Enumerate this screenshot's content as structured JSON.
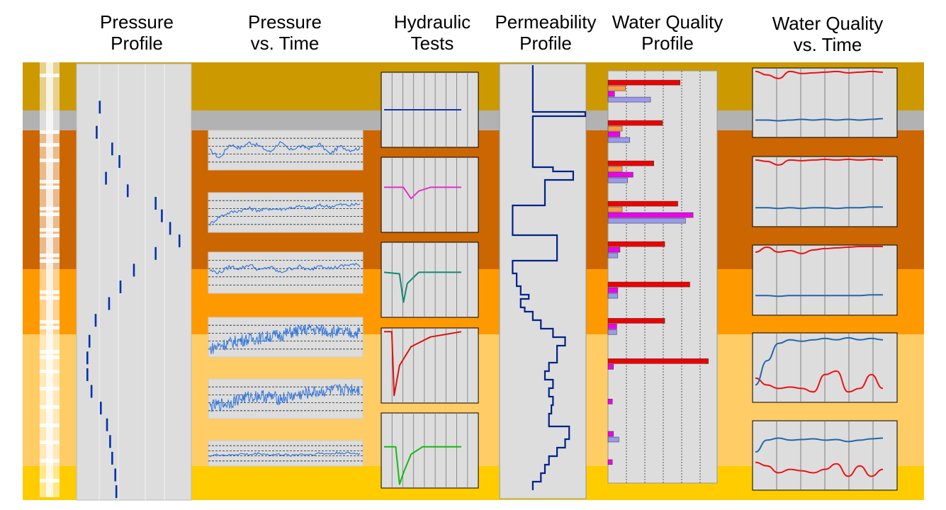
{
  "headers": [
    {
      "line1": "Pressure",
      "line2": "Profile"
    },
    {
      "line1": "Pressure",
      "line2": "vs. Time"
    },
    {
      "line1": "Hydraulic",
      "line2": "Tests"
    },
    {
      "line1": "Permeability",
      "line2": "Profile"
    },
    {
      "line1": "Water Quality",
      "line2": "Profile"
    },
    {
      "line1": "Water Quality",
      "line2": "vs. Time"
    }
  ],
  "colors": {
    "layer_1": "#CC9900",
    "layer_2": "#B2B2B2",
    "layer_3": "#CC6600",
    "layer_4": "#FF9900",
    "layer_5": "#FFCC66",
    "layer_6": "#FFCC00",
    "panel_bg": "#DDDDDD",
    "pressure_marks": "#0033AA",
    "pressure_time_line": "#3377DD",
    "test_flat": "#1133AA",
    "test_magenta": "#DD33CC",
    "test_teal": "#118877",
    "test_red": "#DD1111",
    "test_green": "#11BB11",
    "permeability_line": "#002288",
    "wq_red": "#EE0000",
    "wq_orange": "#FF9944",
    "wq_magenta": "#EE00EE",
    "wq_lavender": "#9999EE",
    "wq_time_red": "#EE1111",
    "wq_time_blue": "#2266AA"
  },
  "chart_data": [
    {
      "type": "line",
      "title": "Pressure Profile",
      "description_of_marks": "short vertical dashes, one per depth interval; relative pressure on a 0-1 scale",
      "depth": [
        0.07,
        0.13,
        0.17,
        0.2,
        0.24,
        0.27,
        0.3,
        0.33,
        0.36,
        0.39,
        0.42,
        0.46,
        0.5,
        0.54,
        0.58,
        0.63,
        0.67,
        0.71,
        0.75,
        0.79,
        0.83,
        0.87,
        0.91,
        0.95,
        0.99
      ],
      "pressure": [
        0.17,
        0.14,
        0.29,
        0.36,
        0.23,
        0.44,
        0.71,
        0.77,
        0.85,
        0.94,
        0.71,
        0.5,
        0.37,
        0.26,
        0.13,
        0.07,
        0.05,
        0.05,
        0.09,
        0.18,
        0.24,
        0.27,
        0.29,
        0.32,
        0.33
      ]
    },
    {
      "type": "line",
      "title": "Pressure vs. Time",
      "series": [
        {
          "values": [
            0.5,
            0.3,
            0.65,
            0.55,
            0.7,
            0.6,
            0.45,
            0.7,
            0.5,
            0.6,
            0.55,
            0.65,
            0.4,
            0.6,
            0.5,
            0.55
          ]
        },
        {
          "values": [
            0.2,
            0.4,
            0.5,
            0.55,
            0.6,
            0.55,
            0.6,
            0.58,
            0.62,
            0.65,
            0.6,
            0.68,
            0.65,
            0.7,
            0.68,
            0.72
          ]
        },
        {
          "values": [
            0.55,
            0.5,
            0.65,
            0.6,
            0.7,
            0.55,
            0.65,
            0.5,
            0.6,
            0.65,
            0.55,
            0.7,
            0.6,
            0.65,
            0.7,
            0.68
          ]
        },
        {
          "values": [
            0.2,
            0.3,
            0.35,
            0.42,
            0.45,
            0.48,
            0.52,
            0.55,
            0.62,
            0.66,
            0.7,
            0.68,
            0.65,
            0.62,
            0.6,
            0.62
          ]
        },
        {
          "values": [
            0.3,
            0.35,
            0.4,
            0.5,
            0.55,
            0.58,
            0.55,
            0.5,
            0.55,
            0.6,
            0.65,
            0.68,
            0.7,
            0.72,
            0.75,
            0.74
          ]
        },
        {
          "values": [
            0.4,
            0.45,
            0.42,
            0.48,
            0.45,
            0.5,
            0.44,
            0.46,
            0.42,
            0.47,
            0.45,
            0.5,
            0.48,
            0.52,
            0.5,
            0.48
          ]
        }
      ]
    },
    {
      "type": "line",
      "title": "Hydraulic Tests",
      "series": [
        {
          "x": [
            0,
            1
          ],
          "y": [
            0.5,
            0.5
          ]
        },
        {
          "x": [
            0,
            0.25,
            0.35,
            0.45,
            0.6,
            1
          ],
          "y": [
            0.6,
            0.6,
            0.45,
            0.55,
            0.6,
            0.6
          ]
        },
        {
          "x": [
            0,
            0.2,
            0.25,
            0.3,
            0.45,
            1
          ],
          "y": [
            0.6,
            0.58,
            0.2,
            0.45,
            0.6,
            0.6
          ]
        },
        {
          "x": [
            0,
            0.1,
            0.13,
            0.2,
            0.35,
            0.6,
            1
          ],
          "y": [
            0.95,
            0.95,
            0.1,
            0.5,
            0.75,
            0.88,
            0.95
          ]
        },
        {
          "x": [
            0,
            0.15,
            0.2,
            0.25,
            0.35,
            0.5,
            1
          ],
          "y": [
            0.55,
            0.55,
            0.05,
            0.2,
            0.45,
            0.55,
            0.55
          ]
        }
      ]
    },
    {
      "type": "line",
      "title": "Permeability Profile",
      "description_of_marks": "step log of relative permeability (0-1) against depth (0-1)",
      "depth": [
        0,
        0.1,
        0.11,
        0.12,
        0.23,
        0.24,
        0.25,
        0.27,
        0.28,
        0.33,
        0.4,
        0.46,
        0.49,
        0.52,
        0.54,
        0.55,
        0.57,
        0.58,
        0.6,
        0.62,
        0.64,
        0.66,
        0.7,
        0.72,
        0.74,
        0.76,
        0.78,
        0.8,
        0.82,
        0.85,
        0.88,
        0.9,
        0.92,
        0.94,
        0.96,
        0.98,
        1.0
      ],
      "permeability": [
        0.35,
        0.35,
        1.0,
        0.35,
        0.35,
        0.6,
        0.85,
        0.5,
        0.5,
        0.1,
        0.65,
        0.1,
        0.15,
        0.2,
        0.3,
        0.2,
        0.25,
        0.35,
        0.45,
        0.6,
        0.75,
        0.65,
        0.55,
        0.5,
        0.6,
        0.55,
        0.6,
        0.58,
        0.55,
        0.8,
        0.75,
        0.65,
        0.55,
        0.5,
        0.45,
        0.35,
        0.35
      ]
    },
    {
      "type": "bar",
      "title": "Water Quality Profile",
      "description_of_marks": "horizontal bars grouped by depth; relative values 0-1",
      "groups": [
        {
          "depth": 0.03,
          "red": 0.66,
          "orange": 0.16,
          "magenta": 0.06,
          "lavender": 0.39
        },
        {
          "depth": 0.13,
          "red": 0.5,
          "orange": 0.13,
          "magenta": 0.11,
          "lavender": 0.2
        },
        {
          "depth": 0.23,
          "red": 0.42,
          "orange": 0.13,
          "magenta": 0.23,
          "lavender": 0.18
        },
        {
          "depth": 0.33,
          "red": 0.64,
          "orange": 0.13,
          "magenta": 0.78,
          "lavender": 0.71
        },
        {
          "depth": 0.43,
          "red": 0.52,
          "magenta": 0.11,
          "lavender": 0.09
        },
        {
          "depth": 0.53,
          "red": 0.75,
          "magenta": 0.09,
          "lavender": 0.09
        },
        {
          "depth": 0.62,
          "red": 0.52,
          "magenta": 0.08,
          "lavender": 0.08
        },
        {
          "depth": 0.72,
          "red": 0.92,
          "magenta": 0.05
        },
        {
          "depth": 0.82,
          "magenta": 0.04
        },
        {
          "depth": 0.9,
          "magenta": 0.05,
          "lavender": 0.1
        },
        {
          "depth": 0.97,
          "magenta": 0.04
        }
      ]
    },
    {
      "type": "line",
      "title": "Water Quality vs. Time",
      "series_per_panel": [
        {
          "red": [
            0.95,
            0.9,
            0.85,
            0.95,
            0.92,
            0.93,
            0.94,
            0.95,
            0.93,
            0.94,
            0.95,
            0.94
          ],
          "blue": [
            0.25,
            0.25,
            0.24,
            0.25,
            0.26,
            0.25,
            0.26,
            0.25,
            0.26,
            0.25,
            0.26,
            0.27
          ]
        },
        {
          "red": [
            0.95,
            0.93,
            0.88,
            0.95,
            0.94,
            0.95,
            0.96,
            0.95,
            0.96,
            0.95,
            0.96,
            0.95
          ],
          "blue": [
            0.27,
            0.27,
            0.26,
            0.27,
            0.26,
            0.27,
            0.27,
            0.26,
            0.27,
            0.27,
            0.28,
            0.28
          ]
        },
        {
          "red": [
            0.9,
            0.97,
            0.9,
            0.92,
            0.88,
            0.93,
            0.95,
            0.96,
            0.97,
            0.98,
            0.98,
            0.98
          ],
          "blue": [
            0.28,
            0.28,
            0.27,
            0.28,
            0.28,
            0.28,
            0.28,
            0.28,
            0.28,
            0.28,
            0.29,
            0.29
          ]
        },
        {
          "red": [
            0.35,
            0.25,
            0.2,
            0.22,
            0.2,
            0.15,
            0.4,
            0.45,
            0.15,
            0.2,
            0.4,
            0.2
          ],
          "blue": [
            0.25,
            0.6,
            0.85,
            0.9,
            0.88,
            0.9,
            0.92,
            0.9,
            0.93,
            0.9,
            0.92,
            0.9
          ]
        },
        {
          "red": [
            0.4,
            0.35,
            0.25,
            0.3,
            0.28,
            0.25,
            0.3,
            0.38,
            0.2,
            0.35,
            0.2,
            0.3
          ],
          "blue": [
            0.55,
            0.72,
            0.75,
            0.72,
            0.73,
            0.74,
            0.72,
            0.73,
            0.7,
            0.72,
            0.74,
            0.75
          ]
        }
      ]
    }
  ]
}
